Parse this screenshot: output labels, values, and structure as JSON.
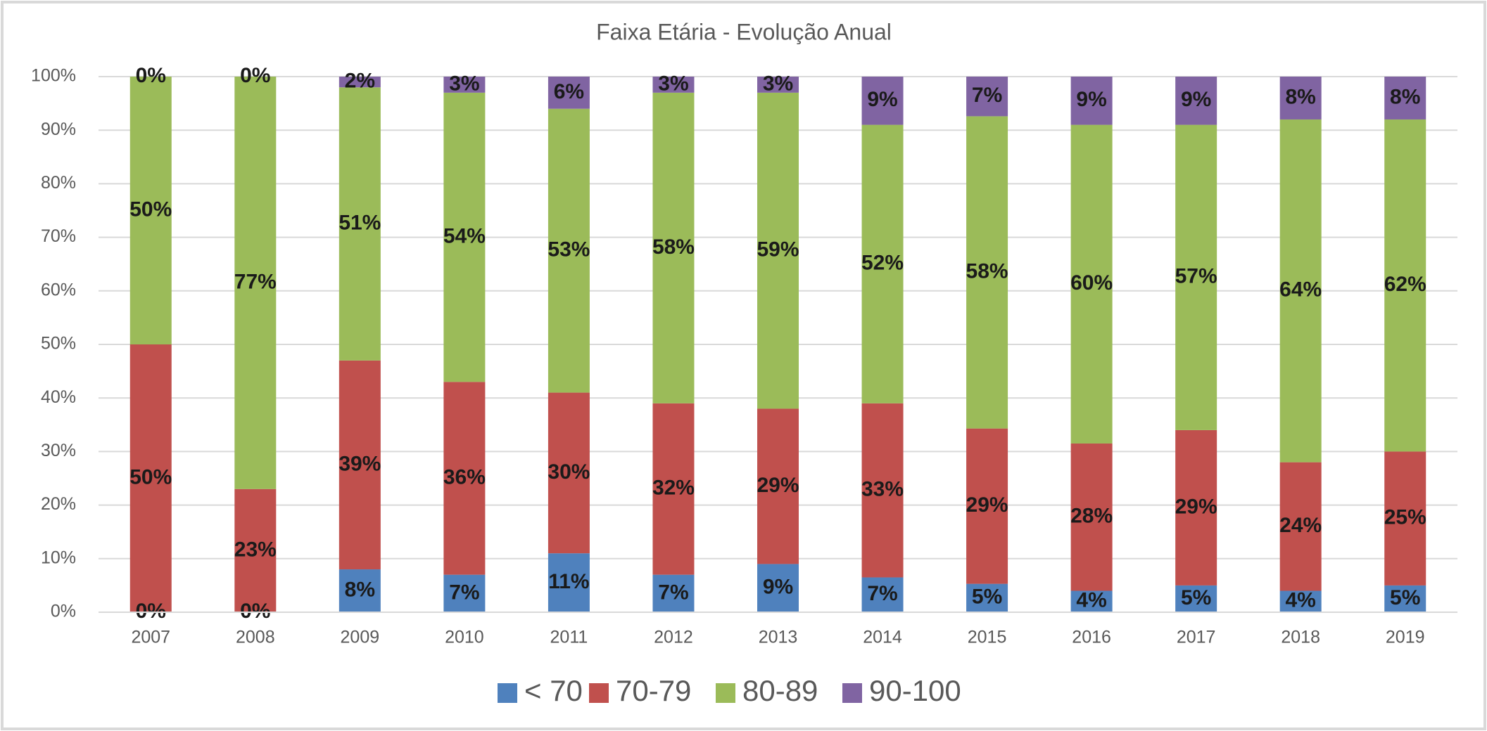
{
  "chart_data": {
    "type": "stacked_bar",
    "title": "Faixa Etária - Evolução Anual",
    "categories": [
      "2007",
      "2008",
      "2009",
      "2010",
      "2011",
      "2012",
      "2013",
      "2014",
      "2015",
      "2016",
      "2017",
      "2018",
      "2019"
    ],
    "series": [
      {
        "name": "< 70",
        "color": "#4f81bd",
        "values": [
          0,
          0,
          8,
          7,
          11,
          7,
          9,
          6.5,
          5.3,
          4,
          5,
          4,
          5
        ],
        "value_labels": [
          "0%",
          "0%",
          "8%",
          "7%",
          "11%",
          "7%",
          "9%",
          "7%",
          "5%",
          "4%",
          "5%",
          "4%",
          "5%"
        ]
      },
      {
        "name": "70-79",
        "color": "#c0504d",
        "values": [
          50,
          23,
          39,
          36,
          30,
          32,
          29,
          32.5,
          29,
          27.5,
          29,
          24,
          25
        ],
        "value_labels": [
          "50%",
          "23%",
          "39%",
          "36%",
          "30%",
          "32%",
          "29%",
          "33%",
          "29%",
          "28%",
          "29%",
          "24%",
          "25%"
        ]
      },
      {
        "name": "80-89",
        "color": "#9bbb59",
        "values": [
          50,
          77,
          51,
          54,
          53,
          58,
          59,
          52,
          58.3,
          59.5,
          57,
          64,
          62
        ],
        "value_labels": [
          "50%",
          "77%",
          "51%",
          "54%",
          "53%",
          "58%",
          "59%",
          "52%",
          "58%",
          "60%",
          "57%",
          "64%",
          "62%"
        ]
      },
      {
        "name": "90-100",
        "color": "#8064a2",
        "values": [
          0,
          0,
          2,
          3,
          6,
          3,
          3,
          9,
          7.4,
          9,
          9,
          8,
          8
        ],
        "value_labels": [
          "0%",
          "0%",
          "2%",
          "3%",
          "6%",
          "3%",
          "3%",
          "9%",
          "7%",
          "9%",
          "9%",
          "8%",
          "8%"
        ]
      }
    ],
    "ylim": [
      0,
      100
    ],
    "yticks": [
      {
        "value": 0,
        "label": "0%"
      },
      {
        "value": 10,
        "label": "10%"
      },
      {
        "value": 20,
        "label": "20%"
      },
      {
        "value": 30,
        "label": "30%"
      },
      {
        "value": 40,
        "label": "40%"
      },
      {
        "value": 50,
        "label": "50%"
      },
      {
        "value": 60,
        "label": "60%"
      },
      {
        "value": 70,
        "label": "70%"
      },
      {
        "value": 80,
        "label": "80%"
      },
      {
        "value": 90,
        "label": "90%"
      },
      {
        "value": 100,
        "label": "100%"
      }
    ],
    "grid": true,
    "legend": "bottom"
  }
}
